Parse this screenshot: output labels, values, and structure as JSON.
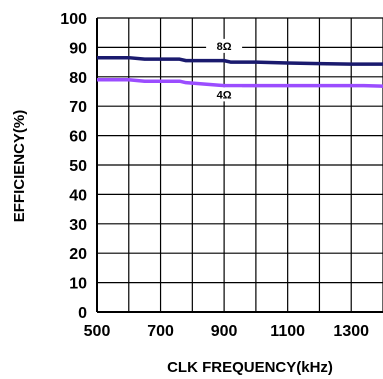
{
  "chart_data": {
    "type": "line",
    "xlabel": "CLK FREQUENCY(kHz)",
    "ylabel": "EFFICIENCY(%)",
    "xlim": [
      500,
      1400
    ],
    "ylim": [
      0,
      100
    ],
    "xticks": [
      500,
      700,
      900,
      1100,
      1300
    ],
    "yticks": [
      0,
      10,
      20,
      30,
      40,
      50,
      60,
      70,
      80,
      90,
      100
    ],
    "grid": true,
    "series": [
      {
        "name": "8Ω",
        "color": "#1a1a6e",
        "x": [
          500,
          600,
          650,
          700,
          760,
          780,
          900,
          920,
          1000,
          1100,
          1200,
          1300,
          1400
        ],
        "y": [
          86.5,
          86.5,
          86,
          86,
          86,
          85.5,
          85.5,
          85,
          85,
          84.7,
          84.5,
          84.3,
          84.3
        ]
      },
      {
        "name": "4Ω",
        "color": "#9b4dff",
        "x": [
          500,
          600,
          650,
          700,
          760,
          780,
          840,
          900,
          1000,
          1100,
          1200,
          1300,
          1340,
          1400
        ],
        "y": [
          79,
          79,
          78.5,
          78.5,
          78.5,
          78,
          77.5,
          77,
          77,
          77,
          77,
          77,
          77,
          76.8
        ]
      }
    ]
  }
}
